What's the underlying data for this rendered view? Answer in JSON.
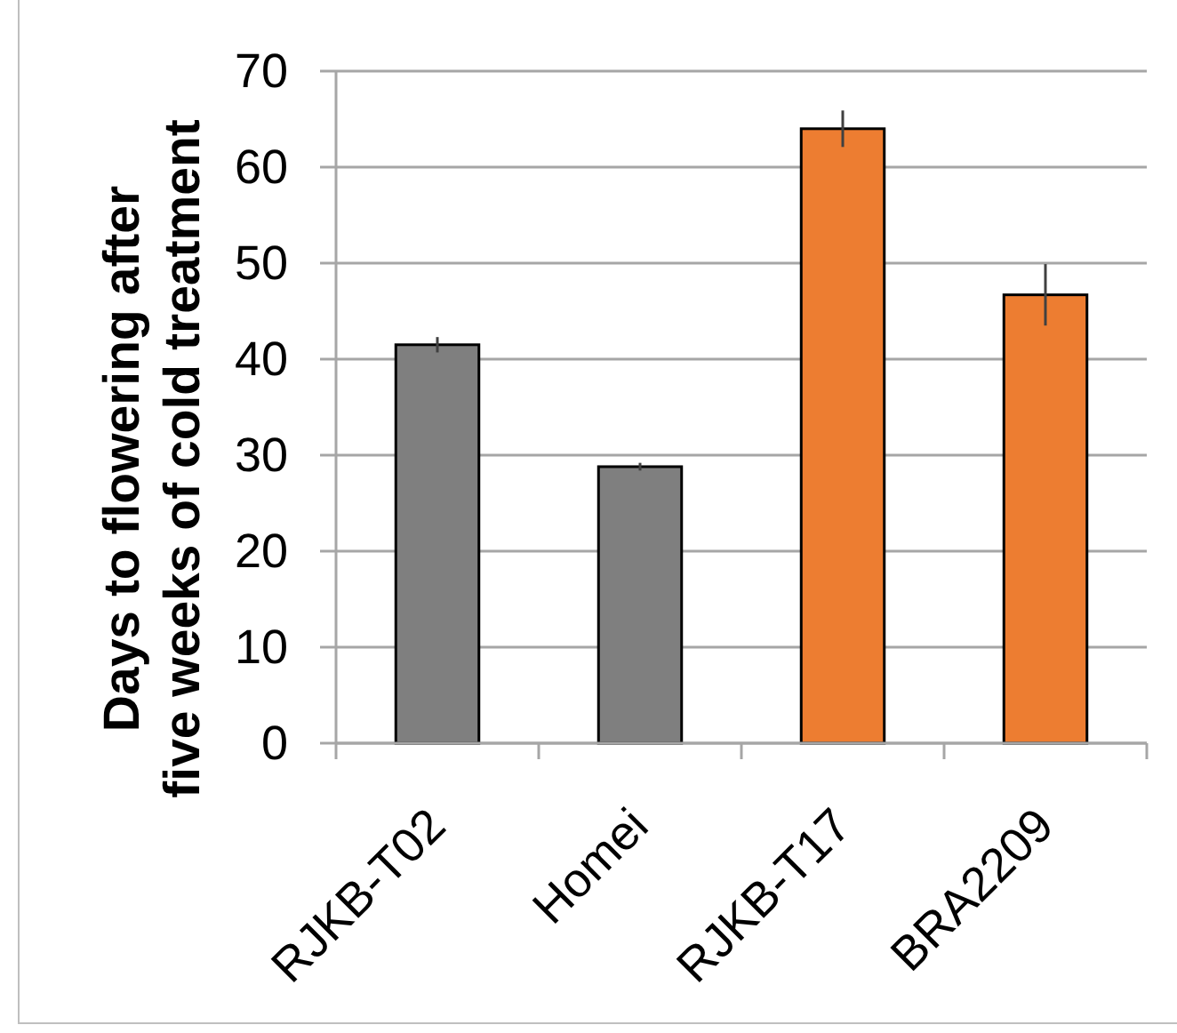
{
  "chart_data": {
    "type": "bar",
    "ylabel": "Days to flowering after\nfive weeks of cold treatment",
    "categories": [
      "RJKB-T02",
      "Homei",
      "RJKB-T17",
      "BRA2209"
    ],
    "values": [
      41.5,
      28.8,
      64.0,
      46.7
    ],
    "colors": [
      "#7f7f7f",
      "#7f7f7f",
      "#ed7d31",
      "#ed7d31"
    ],
    "errors": [
      0.8,
      0.4,
      1.9,
      3.2
    ],
    "ylim": [
      0,
      70
    ],
    "yticks": [
      0,
      10,
      20,
      30,
      40,
      50,
      60,
      70
    ],
    "grid": "y"
  }
}
